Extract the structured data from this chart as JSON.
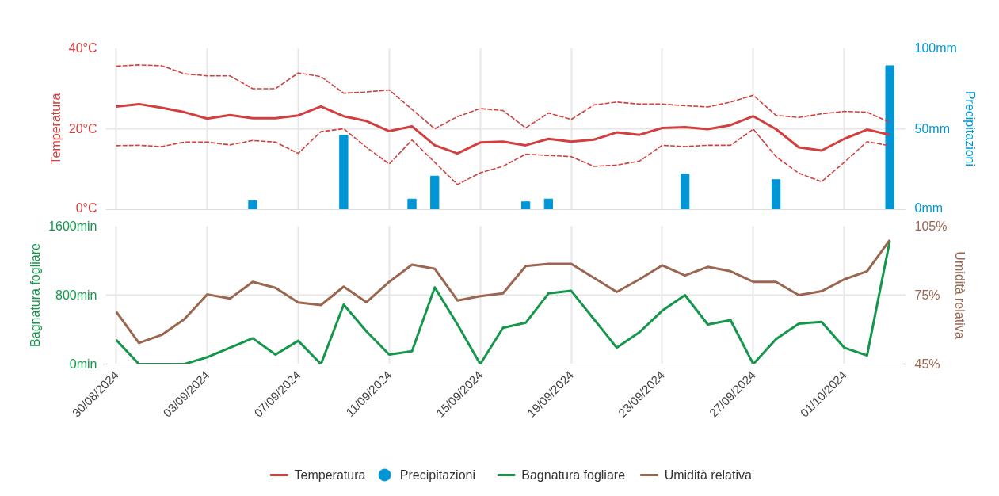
{
  "chart_data": [
    {
      "type": "line",
      "ylabel": "Temperatura",
      "y2label": "Precipitazioni",
      "ylim": [
        0,
        40
      ],
      "yticks": [
        {
          "value": 0,
          "label": "0°C"
        },
        {
          "value": 20,
          "label": "20°C"
        },
        {
          "value": 40,
          "label": "40°C"
        }
      ],
      "y2lim": [
        0,
        100
      ],
      "y2ticks": [
        {
          "value": 0,
          "label": "0mm"
        },
        {
          "value": 50,
          "label": "50mm"
        },
        {
          "value": 100,
          "label": "100mm"
        }
      ],
      "xlim": [
        "2024-08-29T13:00",
        "2024-10-03T17:00"
      ],
      "xticks": [
        {
          "value": "2024-08-30",
          "label": null
        },
        {
          "value": "2024-09-03",
          "label": null
        },
        {
          "value": "2024-09-07",
          "label": null
        },
        {
          "value": "2024-09-11",
          "label": null
        },
        {
          "value": "2024-09-15",
          "label": null
        },
        {
          "value": "2024-09-19",
          "label": null
        },
        {
          "value": "2024-09-23",
          "label": null
        },
        {
          "value": "2024-09-27",
          "label": null
        },
        {
          "value": "2024-10-01",
          "label": null
        }
      ],
      "tick_labels": "y",
      "grid": true,
      "legend": "bottom",
      "marker": "none",
      "x": [
        "2024-08-30",
        "2024-08-31",
        "2024-09-01",
        "2024-09-02",
        "2024-09-03",
        "2024-09-04",
        "2024-09-05",
        "2024-09-06",
        "2024-09-07",
        "2024-09-08",
        "2024-09-09",
        "2024-09-10",
        "2024-09-11",
        "2024-09-12",
        "2024-09-13",
        "2024-09-14",
        "2024-09-15",
        "2024-09-16",
        "2024-09-17",
        "2024-09-18",
        "2024-09-19",
        "2024-09-20",
        "2024-09-21",
        "2024-09-22",
        "2024-09-23",
        "2024-09-24",
        "2024-09-25",
        "2024-09-26",
        "2024-09-27",
        "2024-09-28",
        "2024-09-29",
        "2024-09-30",
        "2024-10-01",
        "2024-10-02",
        "2024-10-03"
      ],
      "series": [
        {
          "name": "Temperatura",
          "color": "#d13f3f",
          "line_style": "solid",
          "values": [
            25.5,
            26.1,
            25.2,
            24.1,
            22.5,
            23.4,
            22.6,
            22.6,
            23.3,
            25.5,
            23.1,
            21.9,
            19.4,
            20.6,
            15.9,
            13.9,
            16.6,
            16.8,
            15.9,
            17.5,
            16.8,
            17.3,
            19.1,
            18.5,
            20.2,
            20.4,
            19.9,
            20.9,
            23.1,
            19.9,
            15.4,
            14.6,
            17.5,
            19.8,
            18.5
          ]
        },
        {
          "color": "#d13f3f",
          "line_style": "dashed",
          "values": [
            35.5,
            35.8,
            35.6,
            33.6,
            33.1,
            33.1,
            29.9,
            29.9,
            33.8,
            32.9,
            28.8,
            29.1,
            29.6,
            24.8,
            20.0,
            23.0,
            25.0,
            24.5,
            20.2,
            23.9,
            22.3,
            25.9,
            26.6,
            26.1,
            26.1,
            25.7,
            25.4,
            26.6,
            28.3,
            23.3,
            22.8,
            23.7,
            24.3,
            24.1,
            21.6
          ]
        },
        {
          "color": "#d13f3f",
          "line_style": "dashed",
          "values": [
            15.8,
            15.9,
            15.6,
            16.7,
            16.7,
            16.0,
            17.1,
            16.7,
            13.9,
            19.3,
            20.0,
            15.4,
            11.3,
            17.2,
            11.7,
            6.2,
            9.1,
            10.7,
            13.7,
            13.4,
            13.1,
            10.7,
            11.0,
            12.0,
            15.9,
            15.6,
            15.9,
            15.9,
            19.9,
            13.1,
            9.0,
            6.9,
            11.7,
            16.8,
            15.8
          ]
        },
        {
          "name": "Precipitazioni",
          "type": "bar",
          "axis": "y2",
          "color": "#0096d6",
          "values": [
            0,
            0,
            0,
            0,
            0,
            0,
            5.5,
            0,
            0,
            0,
            46,
            0,
            0,
            6.5,
            20.7,
            0,
            0,
            0,
            4.8,
            6.5,
            0,
            0,
            0,
            0,
            0,
            21.9,
            0,
            0,
            0,
            18.5,
            0,
            0,
            0,
            0,
            89
          ]
        }
      ]
    },
    {
      "type": "line",
      "ylabel": "Bagnatura fogliare",
      "y2label": "Umidità relativa",
      "ylim": [
        0,
        1600
      ],
      "yticks": [
        {
          "value": 0,
          "label": "0min"
        },
        {
          "value": 800,
          "label": "800min"
        },
        {
          "value": 1600,
          "label": "1600min"
        }
      ],
      "y2lim": [
        45,
        105
      ],
      "y2ticks": [
        {
          "value": 45,
          "label": "45%"
        },
        {
          "value": 75,
          "label": "75%"
        },
        {
          "value": 105,
          "label": "105%"
        }
      ],
      "xlim": [
        "2024-08-29T13:00",
        "2024-10-03T17:00"
      ],
      "xticks": [
        {
          "value": "2024-08-30",
          "label": "30/08/2024"
        },
        {
          "value": "2024-09-03",
          "label": "03/09/2024"
        },
        {
          "value": "2024-09-07",
          "label": "07/09/2024"
        },
        {
          "value": "2024-09-11",
          "label": "11/09/2024"
        },
        {
          "value": "2024-09-15",
          "label": "15/09/2024"
        },
        {
          "value": "2024-09-19",
          "label": "19/09/2024"
        },
        {
          "value": "2024-09-23",
          "label": "23/09/2024"
        },
        {
          "value": "2024-09-27",
          "label": "27/09/2024"
        },
        {
          "value": "2024-10-01",
          "label": "01/10/2024"
        }
      ],
      "grid": true,
      "legend": "bottom",
      "marker": "none",
      "x": [
        "2024-08-30",
        "2024-08-31",
        "2024-09-01",
        "2024-09-02",
        "2024-09-03",
        "2024-09-04",
        "2024-09-05",
        "2024-09-06",
        "2024-09-07",
        "2024-09-08",
        "2024-09-09",
        "2024-09-10",
        "2024-09-11",
        "2024-09-12",
        "2024-09-13",
        "2024-09-14",
        "2024-09-15",
        "2024-09-16",
        "2024-09-17",
        "2024-09-18",
        "2024-09-19",
        "2024-09-20",
        "2024-09-21",
        "2024-09-22",
        "2024-09-23",
        "2024-09-24",
        "2024-09-25",
        "2024-09-26",
        "2024-09-27",
        "2024-09-28",
        "2024-09-29",
        "2024-09-30",
        "2024-10-01",
        "2024-10-02",
        "2024-10-03"
      ],
      "series": [
        {
          "name": "Bagnatura fogliare",
          "color": "#14964b",
          "line_style": "solid",
          "values": [
            280,
            0,
            0,
            0,
            80,
            190,
            300,
            110,
            270,
            0,
            690,
            380,
            110,
            150,
            890,
            460,
            0,
            420,
            480,
            820,
            850,
            520,
            190,
            370,
            620,
            800,
            460,
            510,
            0,
            290,
            470,
            490,
            190,
            100,
            1430
          ]
        },
        {
          "name": "Umidità relativa",
          "axis": "y2",
          "color": "#9b6650",
          "line_style": "solid",
          "values": [
            67.8,
            54.2,
            57.7,
            64.6,
            75.3,
            73.5,
            80.8,
            78.2,
            71.8,
            70.7,
            78.7,
            71.9,
            80.8,
            88.3,
            86.5,
            72.7,
            74.6,
            75.8,
            87.7,
            88.6,
            88.6,
            82.5,
            76.4,
            81.9,
            88.0,
            83.6,
            87.3,
            85.4,
            80.8,
            80.8,
            75.0,
            76.7,
            81.9,
            85.4,
            99.0
          ]
        }
      ]
    }
  ]
}
